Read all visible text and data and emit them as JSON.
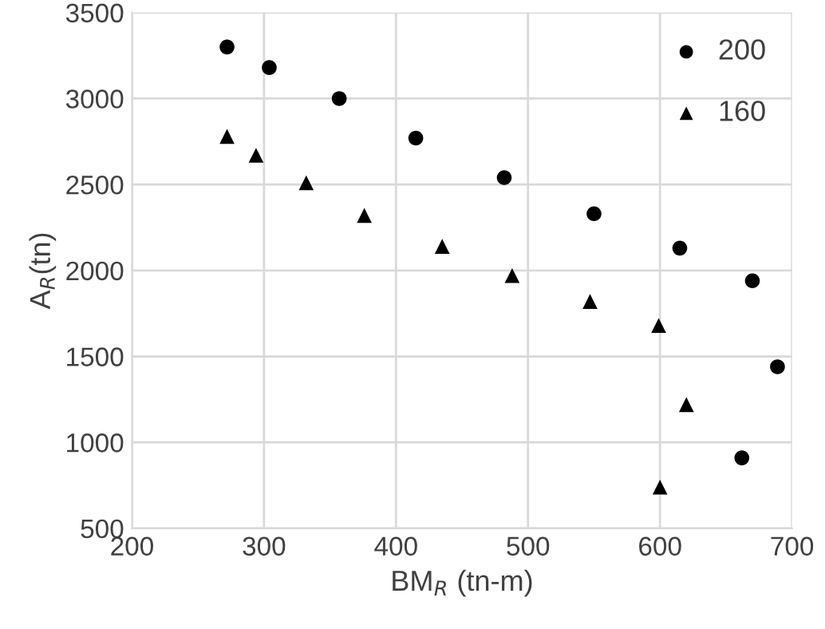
{
  "chart_data": {
    "type": "scatter",
    "xlabel": "BM$_{R}$ (tn-m)",
    "ylabel": "A$_{R}$(tn)",
    "xlim": [
      200,
      700
    ],
    "xticks": [
      200,
      300,
      400,
      500,
      600,
      700
    ],
    "ylim": [
      500,
      3500
    ],
    "yticks": [
      500,
      1000,
      1500,
      2000,
      2500,
      3000,
      3500
    ],
    "grid": true,
    "legend": "top right",
    "series": [
      {
        "name": "200",
        "color": "#000000",
        "marker": "circle",
        "x": [
          272,
          304,
          357,
          415,
          482,
          550,
          615,
          670,
          689,
          662
        ],
        "values": [
          3300,
          3180,
          3000,
          2770,
          2540,
          2330,
          2130,
          1940,
          1440,
          910
        ]
      },
      {
        "name": "160",
        "color": "#000000",
        "marker": "triangle",
        "x": [
          272,
          294,
          332,
          376,
          435,
          488,
          547,
          599,
          620,
          600
        ],
        "values": [
          2780,
          2670,
          2510,
          2320,
          2140,
          1970,
          1820,
          1680,
          1220,
          740
        ]
      }
    ]
  }
}
